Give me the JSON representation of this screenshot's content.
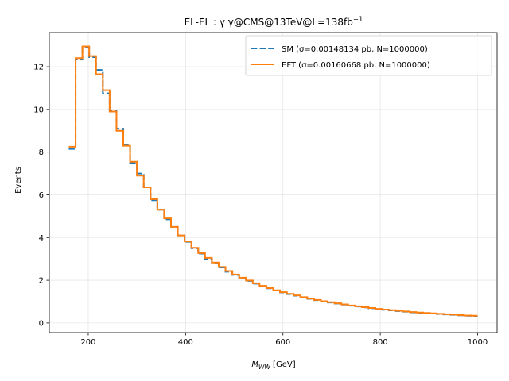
{
  "chart_data": {
    "type": "line",
    "step": true,
    "title_main": "EL-EL : γ γ@CMS@13TeV@L=138fb",
    "title_sup": "−1",
    "xlabel_main": "M",
    "xlabel_sub": "WW",
    "xlabel_unit": " [GeV]",
    "ylabel": "Events",
    "xlim": [
      120,
      1040
    ],
    "ylim": [
      -0.45,
      13.6
    ],
    "xticks": [
      200,
      400,
      600,
      800,
      1000
    ],
    "yticks": [
      0,
      2,
      4,
      6,
      8,
      10,
      12
    ],
    "grid": true,
    "legend_position": "top-right",
    "bin_edges": [
      160,
      174,
      188,
      202,
      216,
      230,
      244,
      258,
      272,
      286,
      300,
      314,
      328,
      342,
      356,
      370,
      384,
      398,
      412,
      426,
      440,
      454,
      468,
      482,
      496,
      510,
      524,
      538,
      552,
      566,
      580,
      594,
      608,
      622,
      636,
      650,
      664,
      678,
      692,
      706,
      720,
      734,
      748,
      762,
      776,
      790,
      804,
      818,
      832,
      846,
      860,
      874,
      888,
      902,
      916,
      930,
      944,
      958,
      972,
      986,
      1000
    ],
    "series": [
      {
        "name": "SM (σ=0.00148134 pb, N=1000000)",
        "color": "#1f77b4",
        "style": "dashed",
        "values": [
          8.15,
          12.35,
          12.9,
          12.45,
          11.85,
          10.75,
          9.95,
          9.1,
          8.35,
          7.5,
          7.0,
          6.35,
          5.75,
          5.3,
          4.85,
          4.5,
          4.1,
          3.8,
          3.5,
          3.25,
          3.0,
          2.8,
          2.6,
          2.4,
          2.25,
          2.1,
          1.97,
          1.84,
          1.72,
          1.62,
          1.52,
          1.43,
          1.35,
          1.28,
          1.2,
          1.13,
          1.07,
          1.01,
          0.96,
          0.91,
          0.86,
          0.81,
          0.77,
          0.73,
          0.69,
          0.65,
          0.62,
          0.59,
          0.56,
          0.53,
          0.5,
          0.48,
          0.46,
          0.44,
          0.42,
          0.4,
          0.38,
          0.36,
          0.34,
          0.33
        ]
      },
      {
        "name": "EFT (σ=0.00160668 pb, N=1000000)",
        "color": "#ff7f0e",
        "style": "solid",
        "values": [
          8.25,
          12.4,
          12.95,
          12.5,
          11.65,
          10.9,
          9.9,
          9.0,
          8.3,
          7.55,
          6.9,
          6.35,
          5.8,
          5.3,
          4.9,
          4.5,
          4.1,
          3.82,
          3.52,
          3.27,
          3.05,
          2.83,
          2.62,
          2.43,
          2.27,
          2.12,
          1.99,
          1.86,
          1.74,
          1.63,
          1.53,
          1.44,
          1.36,
          1.29,
          1.21,
          1.14,
          1.08,
          1.02,
          0.97,
          0.92,
          0.87,
          0.82,
          0.78,
          0.74,
          0.7,
          0.66,
          0.63,
          0.6,
          0.57,
          0.54,
          0.51,
          0.49,
          0.47,
          0.45,
          0.43,
          0.41,
          0.39,
          0.37,
          0.35,
          0.34
        ]
      }
    ]
  }
}
